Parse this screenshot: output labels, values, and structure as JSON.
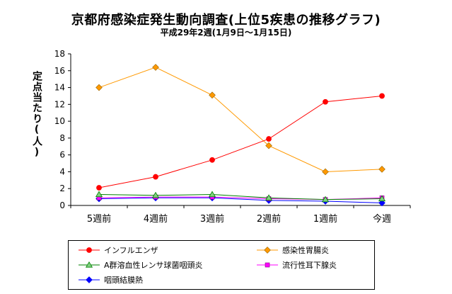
{
  "title": "京都府感染症発生動向調査(上位5疾患の推移グラフ)",
  "subtitle": "平成29年2週(1月9日～1月15日)",
  "chart_data": {
    "type": "line",
    "title": "京都府感染症発生動向調査(上位5疾患の推移グラフ)",
    "subtitle": "平成29年2週(1月9日～1月15日)",
    "ylabel": "定点当たり(人)",
    "xlabel": "",
    "categories": [
      "5週前",
      "4週前",
      "3週前",
      "2週前",
      "1週前",
      "今週"
    ],
    "ylim": [
      0,
      18
    ],
    "yticks": [
      0,
      2,
      4,
      6,
      8,
      10,
      12,
      14,
      16,
      18
    ],
    "grid": false,
    "legend_position": "bottom",
    "series": [
      {
        "name": "インフルエンザ",
        "color": "#ff0000",
        "marker": "circle",
        "values": [
          2.1,
          3.4,
          5.4,
          7.9,
          12.3,
          13.0
        ]
      },
      {
        "name": "感染性胃腸炎",
        "color": "#ff9900",
        "marker": "diamond",
        "values": [
          14.0,
          16.4,
          13.1,
          7.1,
          4.0,
          4.3
        ]
      },
      {
        "name": "A群溶血性レンサ球菌咽頭炎",
        "color": "#008000",
        "marker": "triangle",
        "values": [
          1.3,
          1.2,
          1.3,
          0.9,
          0.7,
          0.8
        ]
      },
      {
        "name": "流行性耳下腺炎",
        "color": "#ff00ff",
        "marker": "square",
        "values": [
          0.9,
          1.0,
          1.0,
          0.8,
          0.7,
          0.9
        ]
      },
      {
        "name": "咽頭結膜熱",
        "color": "#0000ff",
        "marker": "diamond",
        "values": [
          0.8,
          0.9,
          0.9,
          0.6,
          0.5,
          0.3
        ]
      }
    ]
  }
}
